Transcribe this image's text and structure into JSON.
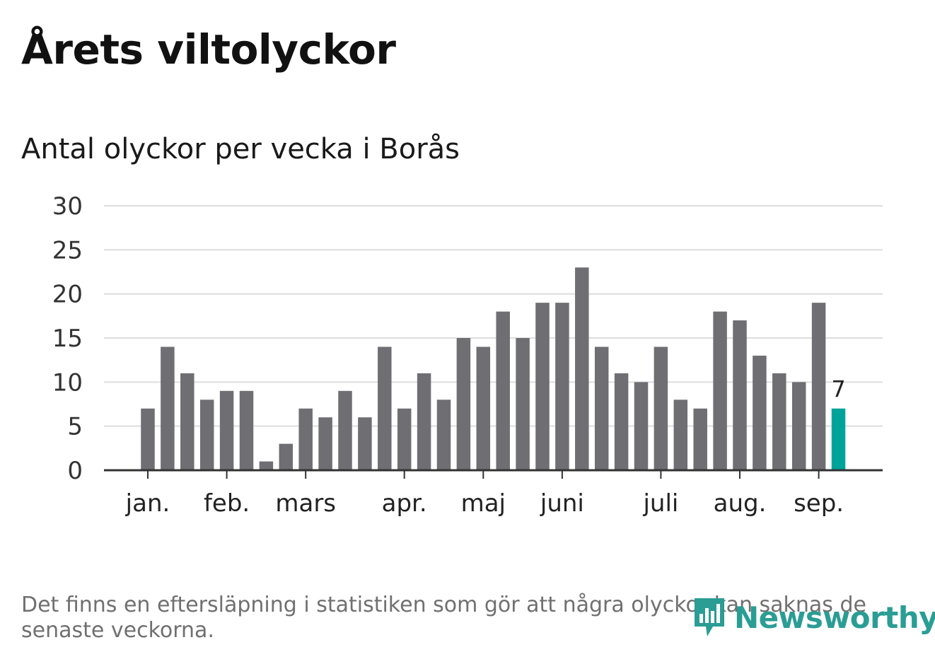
{
  "title": "Årets viltolyckor",
  "subtitle": "Antal olyckor per vecka i Borås",
  "footnote": "Det finns en eftersläpning i statistiken som gör att några olyckor kan saknas de senaste veckorna.",
  "logo": {
    "name": "Newsworthy",
    "icon": "bar-chart-speech-icon"
  },
  "colors": {
    "bar": "#6f6e73",
    "highlight": "#00a39a",
    "grid": "#dddddd",
    "axis": "#333333",
    "text": "#333333"
  },
  "chart_data": {
    "type": "bar",
    "title": "Antal olyckor per vecka i Borås",
    "xlabel": "",
    "ylabel": "",
    "ylim": [
      0,
      30
    ],
    "yticks": [
      0,
      5,
      10,
      15,
      20,
      25,
      30
    ],
    "grid": true,
    "values": [
      7,
      14,
      11,
      8,
      9,
      9,
      1,
      3,
      7,
      6,
      9,
      6,
      14,
      7,
      11,
      8,
      15,
      14,
      18,
      15,
      19,
      19,
      23,
      14,
      11,
      10,
      14,
      8,
      7,
      18,
      17,
      13,
      11,
      10,
      19,
      7
    ],
    "highlight_index": 35,
    "highlight_label": "7",
    "month_labels": [
      {
        "label": "jan.",
        "week_index": 0
      },
      {
        "label": "feb.",
        "week_index": 4
      },
      {
        "label": "mars",
        "week_index": 8
      },
      {
        "label": "apr.",
        "week_index": 13
      },
      {
        "label": "maj",
        "week_index": 17
      },
      {
        "label": "juni",
        "week_index": 21
      },
      {
        "label": "juli",
        "week_index": 26
      },
      {
        "label": "aug.",
        "week_index": 30
      },
      {
        "label": "sep.",
        "week_index": 34
      }
    ]
  }
}
